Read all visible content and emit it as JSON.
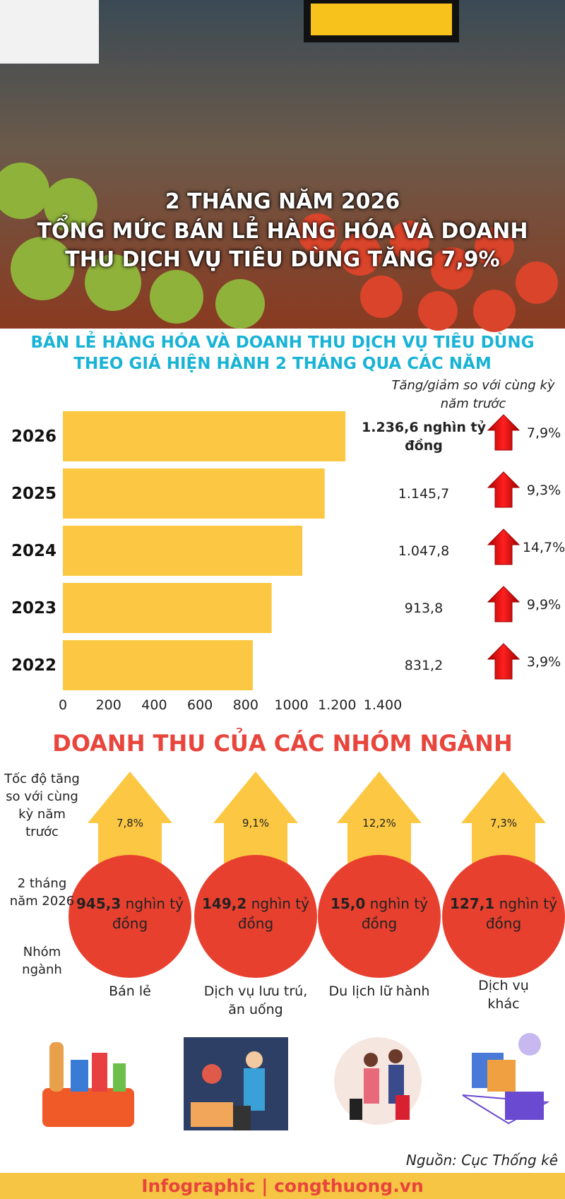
{
  "header": {
    "line1": "2 THÁNG NĂM 2026",
    "line2": "TỔNG MỨC BÁN LẺ HÀNG HÓA VÀ DOANH THU DỊCH VỤ TIÊU DÙNG TĂNG 7,9%"
  },
  "chart_data": {
    "type": "bar",
    "orientation": "horizontal",
    "title": "BÁN LẺ HÀNG HÓA VÀ DOANH THU DỊCH VỤ TIÊU DÙNG THEO GIÁ HIỆN HÀNH 2 THÁNG QUA CÁC NĂM",
    "categories": [
      "2026",
      "2025",
      "2024",
      "2023",
      "2022"
    ],
    "values": [
      1236.6,
      1145.7,
      1047.8,
      913.8,
      831.2
    ],
    "value_labels": [
      "1.236,6 nghìn tỷ đồng",
      "1.145,7",
      "1.047,8",
      "913,8",
      "831,2"
    ],
    "color": "#fcc843",
    "xlim": [
      0,
      1400
    ],
    "xticks": [
      0,
      200,
      400,
      600,
      800,
      1000,
      {
        "value": 1200,
        "label": "1.200"
      },
      {
        "value": 1400,
        "label": "1.400"
      }
    ],
    "change_title": "Tăng/giảm so với cùng kỳ năm trước",
    "change": {
      "values": [
        7.9,
        9.3,
        14.7,
        9.9,
        3.9
      ],
      "value_labels": [
        "7,9%",
        "9,3%",
        "14,7%",
        "9,9%",
        "3,9%"
      ]
    }
  },
  "sectors": {
    "title": "DOANH THU CỦA CÁC NHÓM NGÀNH",
    "row_labels": [
      "Tốc độ tăng so với cùng kỳ năm trước",
      "2 tháng năm 2026",
      "Nhóm ngành"
    ],
    "unit": "nghìn tỷ đồng",
    "items": [
      {
        "name": "Bán lẻ",
        "growth": 7.8,
        "growth_label": "7,8%",
        "revenue": 945.3,
        "revenue_label": "945,3"
      },
      {
        "name": "Dịch vụ lưu trú, ăn uống",
        "growth": 9.1,
        "growth_label": "9,1%",
        "revenue": 149.2,
        "revenue_label": "149,2"
      },
      {
        "name": "Du lịch lữ hành",
        "growth": 12.2,
        "growth_label": "12,2%",
        "revenue": 15.0,
        "revenue_label": "15,0"
      },
      {
        "name": "Dịch vụ khác",
        "growth": 7.3,
        "growth_label": "7,3%",
        "revenue": 127.1,
        "revenue_label": "127,1"
      }
    ]
  },
  "source": "Nguồn: Cục Thống kê",
  "footer": "Infographic | congthuong.vn"
}
